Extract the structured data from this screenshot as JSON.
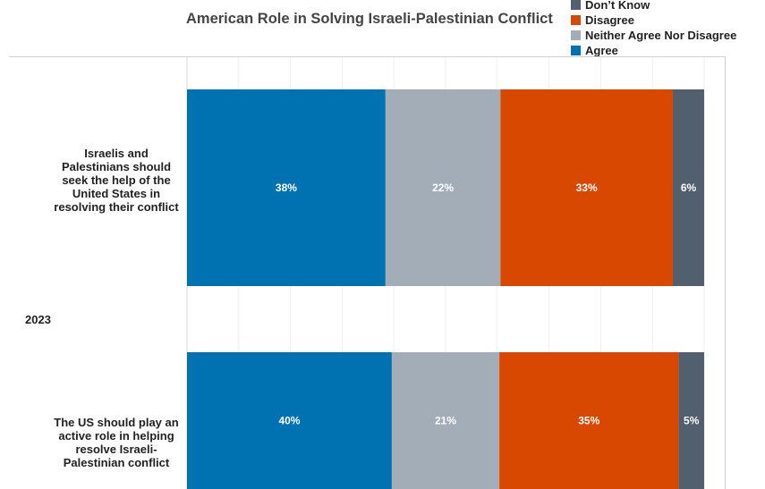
{
  "chart_data": {
    "type": "bar",
    "orientation": "horizontal",
    "stacked": true,
    "title": "American Role in Solving Israeli-Palestinian Conflict",
    "group_label": "2023",
    "categories": [
      "Israelis and Palestinians should seek the help of the United States in resolving their conflict",
      "The US should play an active role in helping resolve Israeli-Palestinian conflict"
    ],
    "series": [
      {
        "name": "Agree",
        "color": "#0072b2",
        "values": [
          38,
          40
        ],
        "labels": [
          "38%",
          "40%"
        ]
      },
      {
        "name": "Neither Agree Nor Disagree",
        "color": "#a3adb8",
        "values": [
          22,
          21
        ],
        "labels": [
          "22%",
          "21%"
        ]
      },
      {
        "name": "Disagree",
        "color": "#d94801",
        "values": [
          33,
          35
        ],
        "labels": [
          "33%",
          "35%"
        ]
      },
      {
        "name": "Don’t Know",
        "color": "#525f6e",
        "values": [
          6,
          5
        ],
        "labels": [
          "6%",
          "5%"
        ]
      }
    ],
    "legend_order": [
      "Don’t Know",
      "Disagree",
      "Neither Agree Nor Disagree",
      "Agree"
    ],
    "legend_position": "top-right",
    "xlim": [
      0,
      100
    ],
    "grid": true
  }
}
